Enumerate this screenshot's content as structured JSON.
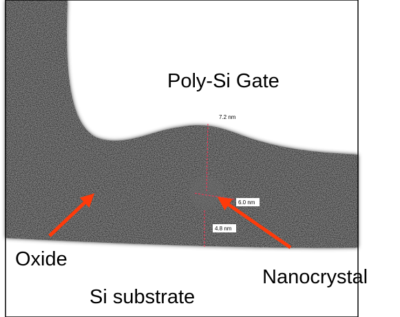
{
  "labels": {
    "gate": "Poly-Si Gate",
    "oxide": "Oxide",
    "nanocrystal": "Nanocrystal",
    "substrate": "Si substrate"
  },
  "measurements": [
    "7.2 nm",
    "6.0 nm",
    "4.8 nm"
  ]
}
